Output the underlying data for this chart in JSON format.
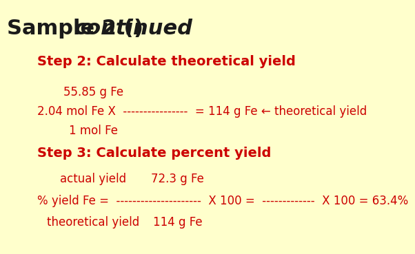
{
  "bg_color": "#ffffcc",
  "title_text": "Sample 2 (",
  "title_italic": "continued",
  "title_close": ")",
  "title_color": "#1a1a1a",
  "title_fontsize": 22,
  "red_color": "#cc0000",
  "step2_text": "Step 2: Calculate theoretical yield",
  "step2_fontsize": 14,
  "numerator2": "55.85 g Fe",
  "fraction2_line": "2.04 mol Fe X  ---------------  = 114 g Fe ← theoretical yield",
  "denominator2": "1 mol Fe",
  "step3_text": "Step 3: Calculate percent yield",
  "step3_fontsize": 14,
  "numerator3a": "actual yield",
  "numerator3b": "72.3 g Fe",
  "fraction3_line": "% yield Fe =  ---------------------  X 100 =  -------------  X 100 = 63.4%",
  "denominator3a": "theoretical yield",
  "denominator3b": "114 g Fe"
}
